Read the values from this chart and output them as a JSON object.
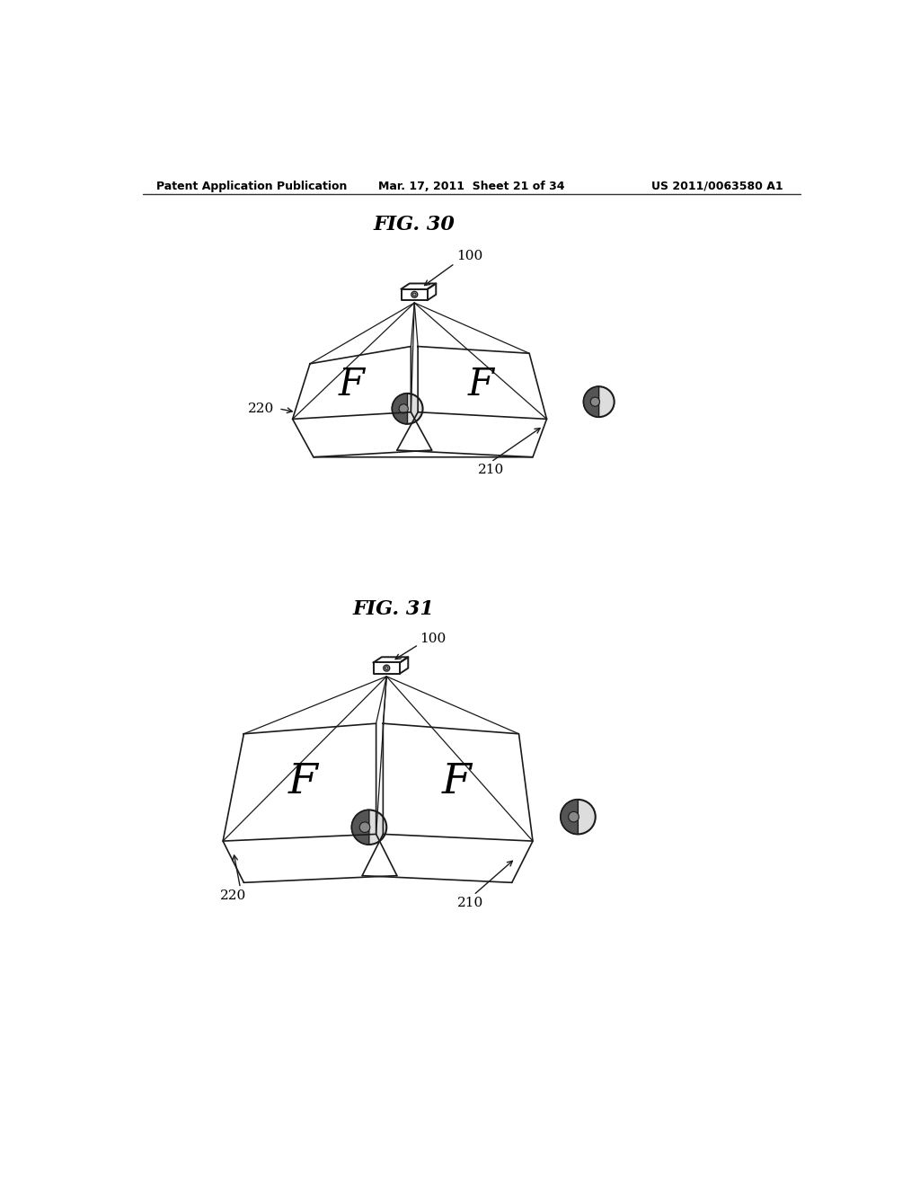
{
  "bg_color": "#ffffff",
  "text_color": "#000000",
  "header_left": "Patent Application Publication",
  "header_center": "Mar. 17, 2011  Sheet 21 of 34",
  "header_right": "US 2011/0063580 A1",
  "fig30_title": "FIG. 30",
  "fig31_title": "FIG. 31",
  "label_100_fig30": "100",
  "label_220_fig30": "220",
  "label_210_fig30": "210",
  "label_100_fig31": "100",
  "label_220_fig31": "220",
  "label_210_fig31": "210",
  "line_color": "#1a1a1a",
  "line_width": 1.2
}
